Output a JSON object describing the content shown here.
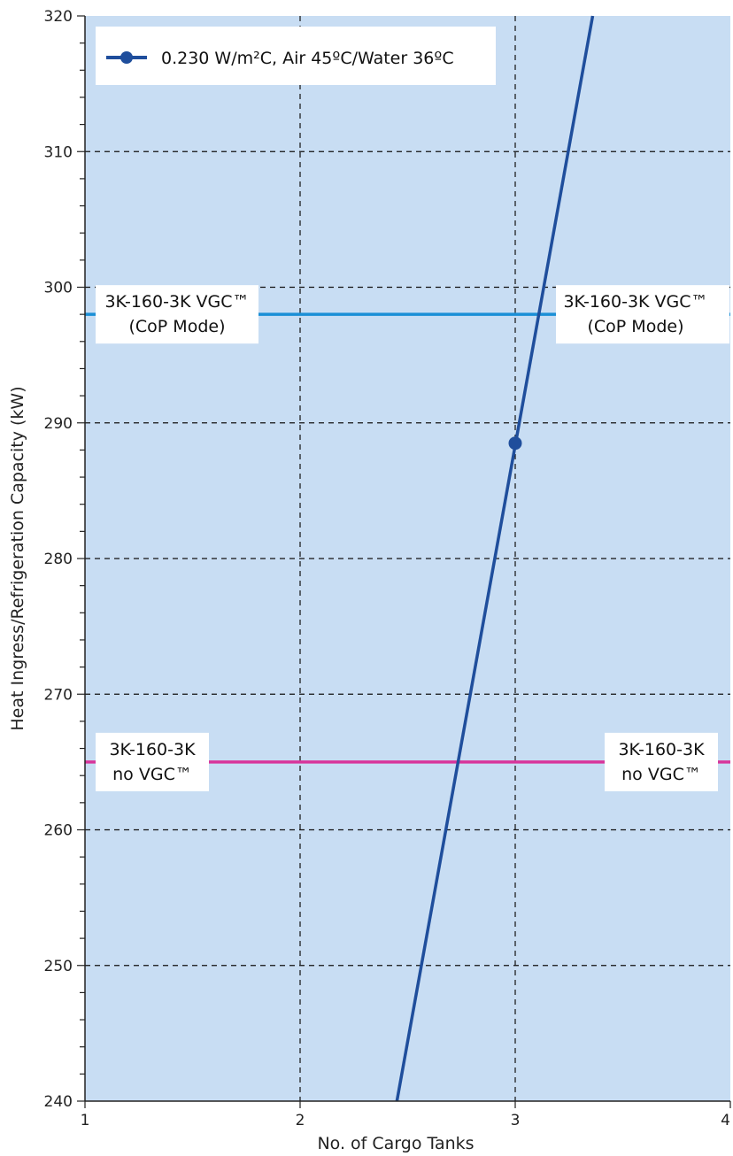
{
  "chart_data": {
    "type": "line",
    "xlabel": "No. of Cargo Tanks",
    "ylabel": "Heat Ingress/Refrigeration Capacity (kW)",
    "xlim": [
      1,
      4
    ],
    "ylim": [
      240,
      320
    ],
    "xticks": [
      1,
      2,
      3,
      4
    ],
    "yticks": [
      240,
      250,
      260,
      270,
      280,
      290,
      300,
      310,
      320
    ],
    "grid": true,
    "legend_position": "top-left",
    "background_color": "#c8ddf3",
    "series": [
      {
        "name": "0.230 W/m²C, Air 45ºC/Water 36ºC",
        "color": "#1f4e9c",
        "marker_points": [
          {
            "x": 3,
            "y": 288.5
          }
        ],
        "line_points": [
          {
            "x": 2.45,
            "y": 240
          },
          {
            "x": 3.36,
            "y": 320
          }
        ]
      }
    ],
    "reference_lines": [
      {
        "y": 298,
        "color": "#1a8fd6",
        "label_line1": "3K-160-3K VGC™",
        "label_line2": "(CoP Mode)"
      },
      {
        "y": 265,
        "color": "#d8359b",
        "label_line1": "3K-160-3K",
        "label_line2": "no VGC™"
      }
    ]
  }
}
